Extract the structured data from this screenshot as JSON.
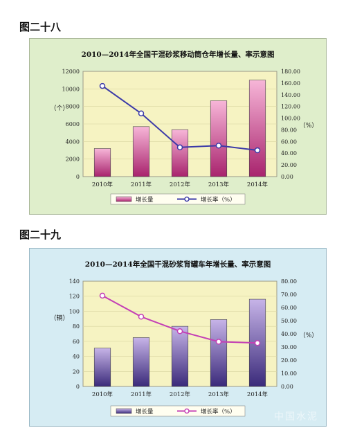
{
  "figures": {
    "fig1_label": "图二十八",
    "fig2_label": "图二十九"
  },
  "watermark": "中国水泥",
  "colors": {
    "panel1_bg": "#dfeecb",
    "panel1_border": "#aab89a",
    "plot1_bg": "#f6f3c2",
    "bar1_fill_top": "#f7b6d8",
    "bar1_fill_bottom": "#a8236d",
    "line1": "#3b3aa8",
    "panel2_bg": "#d6ecf3",
    "panel2_border": "#9bb9c6",
    "plot2_bg": "#f6f3c2",
    "bar2_fill_top": "#c7b4e8",
    "bar2_fill_bottom": "#3a2a7a",
    "line2": "#c43fb5"
  },
  "chart_data": [
    {
      "type": "bar",
      "title": "2010—2014年全国干混砂浆移动筒仓年增长量、率示意图",
      "categories": [
        "2010年",
        "2011年",
        "2012年",
        "2013年",
        "2014年"
      ],
      "ylabel": "（个）",
      "y2label": "（%）",
      "ylim": [
        0,
        12000
      ],
      "y2lim": [
        0,
        180
      ],
      "yticks": [
        "0",
        "2000",
        "4000",
        "6000",
        "8000",
        "10000",
        "12000"
      ],
      "y2ticks": [
        "0.00",
        "20.00",
        "40.00",
        "60.00",
        "80.00",
        "100.00",
        "120.00",
        "140.00",
        "160.00",
        "180.00"
      ],
      "series": [
        {
          "name": "增长量",
          "kind": "bar",
          "axis": "left",
          "values": [
            3200,
            5700,
            5350,
            8650,
            11000
          ]
        },
        {
          "name": "增长率（%）",
          "kind": "line",
          "axis": "right",
          "values": [
            155,
            108,
            50,
            53,
            45
          ]
        }
      ],
      "legend": "bottom"
    },
    {
      "type": "bar",
      "title": "2010—2014年全国干混砂浆背罐车年增长量、率示意图",
      "categories": [
        "2010年",
        "2011年",
        "2012年",
        "2013年",
        "2014年"
      ],
      "ylabel": "（辆）",
      "y2label": "（%）",
      "ylim": [
        0,
        140
      ],
      "y2lim": [
        0,
        80
      ],
      "yticks": [
        "0",
        "20",
        "40",
        "60",
        "80",
        "100",
        "120",
        "140"
      ],
      "y2ticks": [
        "0.00",
        "10.00",
        "20.00",
        "30.00",
        "40.00",
        "50.00",
        "60.00",
        "70.00",
        "80.00"
      ],
      "series": [
        {
          "name": "增长量",
          "kind": "bar",
          "axis": "left",
          "values": [
            51,
            65,
            80,
            89,
            116
          ]
        },
        {
          "name": "增长率（%）",
          "kind": "line",
          "axis": "right",
          "values": [
            69,
            53,
            42,
            34,
            33
          ]
        }
      ],
      "legend": "bottom"
    }
  ]
}
